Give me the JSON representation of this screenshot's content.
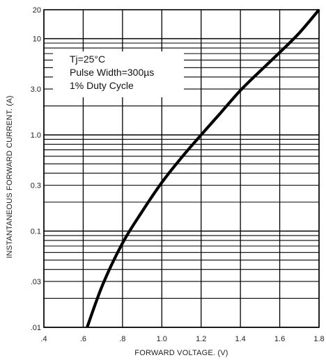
{
  "chart_data": {
    "type": "line",
    "title": "",
    "xlabel": "FORWARD VOLTAGE. (V)",
    "ylabel": "INSTANTANEOUS FORWARD CURRENT. (A)",
    "xlim": [
      0.4,
      1.8
    ],
    "ylim": [
      0.01,
      20
    ],
    "yscale": "log",
    "grid": true,
    "x_tick_values": [
      0.4,
      0.6,
      0.8,
      1.0,
      1.2,
      1.4,
      1.6,
      1.8
    ],
    "x_tick_labels": [
      ".4",
      ".6",
      ".8",
      "1.0",
      "1.2",
      "1.4",
      "1.6",
      "1.8"
    ],
    "y_tick_values": [
      0.01,
      0.03,
      0.1,
      0.3,
      1.0,
      3.0,
      10,
      20
    ],
    "y_tick_labels": [
      ".01",
      ".03",
      "0.1",
      "0.3",
      "1.0",
      "3.0",
      "10",
      "20"
    ],
    "series": [
      {
        "x": [
          0.62,
          0.7,
          0.8,
          0.9,
          1.0,
          1.1,
          1.2,
          1.3,
          1.4,
          1.5,
          1.6,
          1.7,
          1.8
        ],
        "y": [
          0.01,
          0.028,
          0.075,
          0.16,
          0.32,
          0.58,
          1.0,
          1.7,
          2.9,
          4.6,
          7.2,
          11.5,
          20
        ]
      }
    ],
    "annotations": [
      "Tj=25°C",
      "Pulse Width=300µs",
      "1% Duty Cycle"
    ]
  },
  "colors": {
    "curve": "#000000",
    "grid": "#000000",
    "background": "#ffffff"
  }
}
